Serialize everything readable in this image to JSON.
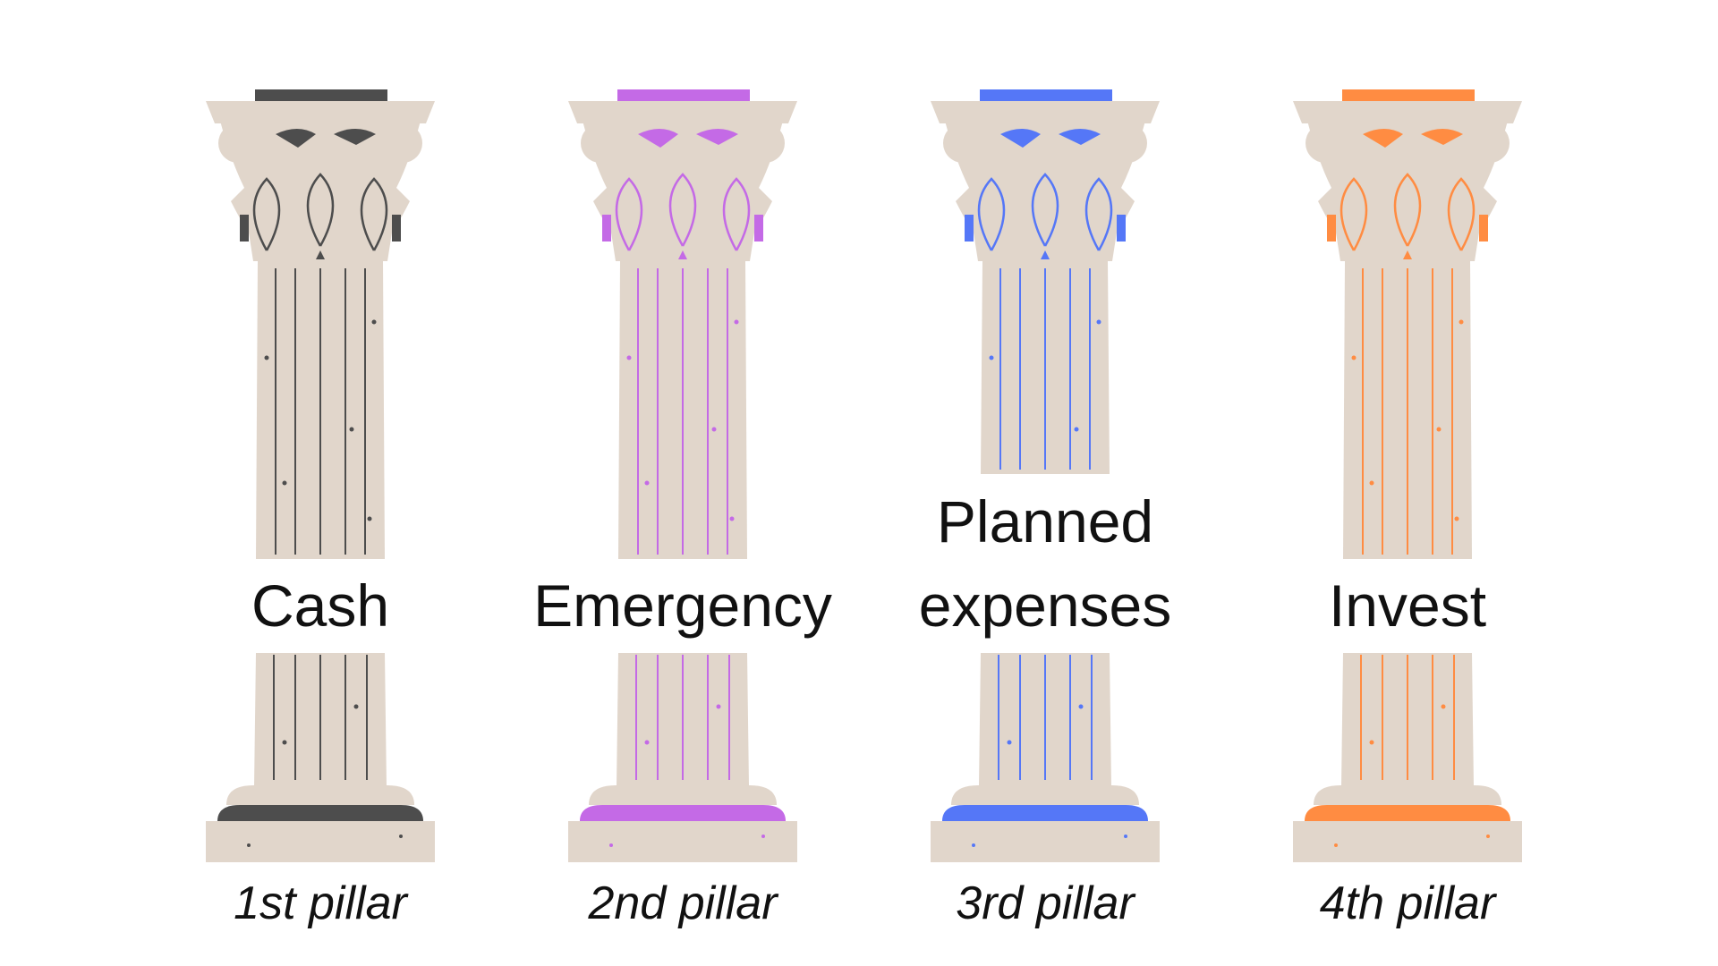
{
  "pillars": [
    {
      "name": "Cash",
      "caption": "1st pillar",
      "accent": "#4d4d4d"
    },
    {
      "name": "Emergency",
      "caption": "2nd pillar",
      "accent": "#c46ae6"
    },
    {
      "name": "Planned\nexpenses",
      "caption": "3rd pillar",
      "accent": "#5577f7"
    },
    {
      "name": "Invest",
      "caption": "4th pillar",
      "accent": "#ff8c42"
    }
  ],
  "colors": {
    "stone": "#e1d6cb",
    "background": "#ffffff"
  }
}
